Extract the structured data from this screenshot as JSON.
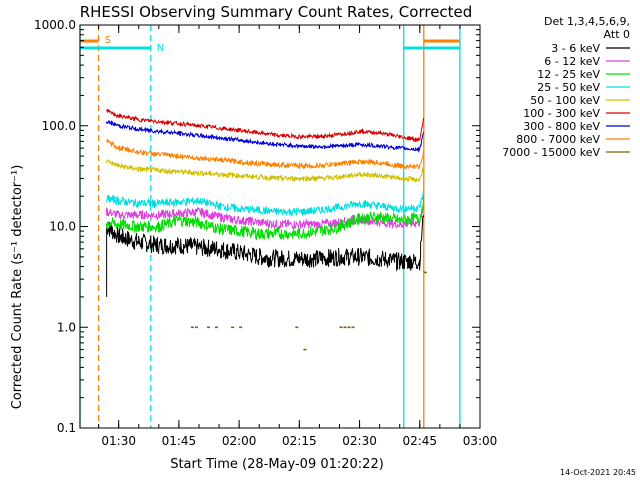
{
  "chart_data": {
    "type": "line",
    "title": "RHESSI Observing Summary Count Rates, Corrected",
    "ylabel": "Corrected Count Rate (s⁻¹ detector⁻¹)",
    "xlabel": "Start Time (28-May-09 01:20:22)",
    "y_scale": "log",
    "ylim": [
      0.1,
      1000
    ],
    "xlim": [
      "01:20:22",
      "03:00:00"
    ],
    "y_ticks": [
      "0.1",
      "1.0",
      "10.0",
      "100.0",
      "1000.0"
    ],
    "x_ticks": [
      "01:30",
      "01:45",
      "02:00",
      "02:15",
      "02:30",
      "02:45",
      "03:00"
    ],
    "legend_header": [
      "Det 1,3,4,5,6,9,",
      "Att 0"
    ],
    "legend_position": "right",
    "series": [
      {
        "name": "3 - 6 keV",
        "color": "#000000",
        "x": [
          "01:27",
          "01:30",
          "01:35",
          "01:40",
          "01:45",
          "01:50",
          "01:55",
          "02:00",
          "02:05",
          "02:10",
          "02:15",
          "02:20",
          "02:25",
          "02:30",
          "02:35",
          "02:40",
          "02:45",
          "02:46"
        ],
        "y": [
          10,
          8,
          7,
          6.5,
          6.5,
          6.2,
          6,
          5.5,
          5,
          4.8,
          4.8,
          4.8,
          5,
          5,
          4.8,
          4.5,
          4.5,
          15
        ]
      },
      {
        "name": "6 - 12 keV",
        "color": "#e040e0",
        "x": [
          "01:27",
          "01:30",
          "01:35",
          "01:40",
          "01:45",
          "01:50",
          "01:55",
          "02:00",
          "02:05",
          "02:10",
          "02:15",
          "02:20",
          "02:25",
          "02:30",
          "02:35",
          "02:40",
          "02:45",
          "02:46"
        ],
        "y": [
          14,
          13,
          13,
          13,
          13.5,
          14,
          12.5,
          11.5,
          11,
          10.5,
          10.5,
          10.5,
          11,
          12,
          11,
          10.5,
          11,
          16
        ]
      },
      {
        "name": "12 - 25 keV",
        "color": "#00e000",
        "x": [
          "01:27",
          "01:30",
          "01:35",
          "01:40",
          "01:45",
          "01:50",
          "01:55",
          "02:00",
          "02:05",
          "02:10",
          "02:15",
          "02:20",
          "02:25",
          "02:30",
          "02:35",
          "02:40",
          "02:45",
          "02:46"
        ],
        "y": [
          11,
          10.5,
          10,
          10,
          11.5,
          11,
          9.5,
          9,
          8.5,
          8.5,
          8.5,
          9,
          10,
          12,
          12.5,
          11.5,
          12,
          18
        ]
      },
      {
        "name": "25 - 50 keV",
        "color": "#00e0e0",
        "x": [
          "01:27",
          "01:30",
          "01:35",
          "01:40",
          "01:45",
          "01:50",
          "01:55",
          "02:00",
          "02:05",
          "02:10",
          "02:15",
          "02:20",
          "02:25",
          "02:30",
          "02:35",
          "02:40",
          "02:45",
          "02:46"
        ],
        "y": [
          19,
          18,
          17,
          17,
          17.5,
          18,
          16,
          15,
          14.5,
          14,
          14,
          14.5,
          15.5,
          17,
          16,
          15,
          15.5,
          22
        ]
      },
      {
        "name": "50 - 100 keV",
        "color": "#d0c000",
        "x": [
          "01:27",
          "01:30",
          "01:35",
          "01:40",
          "01:45",
          "01:50",
          "01:55",
          "02:00",
          "02:05",
          "02:10",
          "02:15",
          "02:20",
          "02:25",
          "02:30",
          "02:35",
          "02:40",
          "02:45",
          "02:46"
        ],
        "y": [
          45,
          40,
          37,
          36,
          35,
          34,
          33,
          32,
          31,
          30,
          30,
          30,
          31,
          33,
          32,
          30,
          29,
          40
        ]
      },
      {
        "name": "100 - 300 keV",
        "color": "#e00000",
        "x": [
          "01:27",
          "01:30",
          "01:35",
          "01:40",
          "01:45",
          "01:50",
          "01:55",
          "02:00",
          "02:05",
          "02:10",
          "02:15",
          "02:20",
          "02:25",
          "02:30",
          "02:35",
          "02:40",
          "02:45",
          "02:46"
        ],
        "y": [
          140,
          125,
          115,
          110,
          105,
          100,
          95,
          90,
          85,
          80,
          78,
          78,
          82,
          88,
          85,
          78,
          72,
          120
        ]
      },
      {
        "name": "300 - 800 keV",
        "color": "#0000e0",
        "x": [
          "01:27",
          "01:30",
          "01:35",
          "01:40",
          "01:45",
          "01:50",
          "01:55",
          "02:00",
          "02:05",
          "02:10",
          "02:15",
          "02:20",
          "02:25",
          "02:30",
          "02:35",
          "02:40",
          "02:45",
          "02:46"
        ],
        "y": [
          110,
          100,
          92,
          88,
          84,
          80,
          76,
          72,
          68,
          65,
          63,
          62,
          63,
          65,
          63,
          60,
          58,
          90
        ]
      },
      {
        "name": "800 - 7000 keV",
        "color": "#ff8000",
        "x": [
          "01:27",
          "01:30",
          "01:35",
          "01:40",
          "01:45",
          "01:50",
          "01:55",
          "02:00",
          "02:05",
          "02:10",
          "02:15",
          "02:20",
          "02:25",
          "02:30",
          "02:35",
          "02:40",
          "02:45",
          "02:46"
        ],
        "y": [
          70,
          60,
          55,
          52,
          50,
          48,
          46,
          44,
          42,
          41,
          40,
          40,
          42,
          44,
          43,
          40,
          39,
          55
        ]
      },
      {
        "name": "7000 - 15000 keV",
        "color": "#806000",
        "x": [
          "01:48",
          "01:49",
          "01:52",
          "01:54",
          "01:58",
          "02:00",
          "02:14",
          "02:16",
          "02:25",
          "02:26",
          "02:27",
          "02:28",
          "02:46"
        ],
        "y": [
          1.0,
          1.0,
          1.0,
          1.0,
          1.0,
          1.0,
          1.0,
          0.6,
          1.0,
          1.0,
          1.0,
          1.0,
          3.5
        ]
      }
    ],
    "annotations": [
      {
        "label": "S",
        "color": "#ff8000",
        "bar": [
          "01:20:22",
          "01:25"
        ],
        "line_at": "01:25"
      },
      {
        "label": "N",
        "color": "#00e0e0",
        "bar": [
          "01:20:22",
          "01:38"
        ],
        "line_at": "01:38"
      },
      {
        "label": "",
        "color": "#00e0e0",
        "bar": [
          "02:41",
          "02:55"
        ],
        "line_at": "02:41"
      },
      {
        "label": "",
        "color": "#ff8000",
        "bar": [
          "02:46",
          "02:55"
        ],
        "line_at": "02:46"
      },
      {
        "label": "",
        "color": "#00e0e0",
        "line_at": "02:55"
      }
    ]
  },
  "footer": {
    "timestamp": "14-Oct-2021 20:45"
  }
}
